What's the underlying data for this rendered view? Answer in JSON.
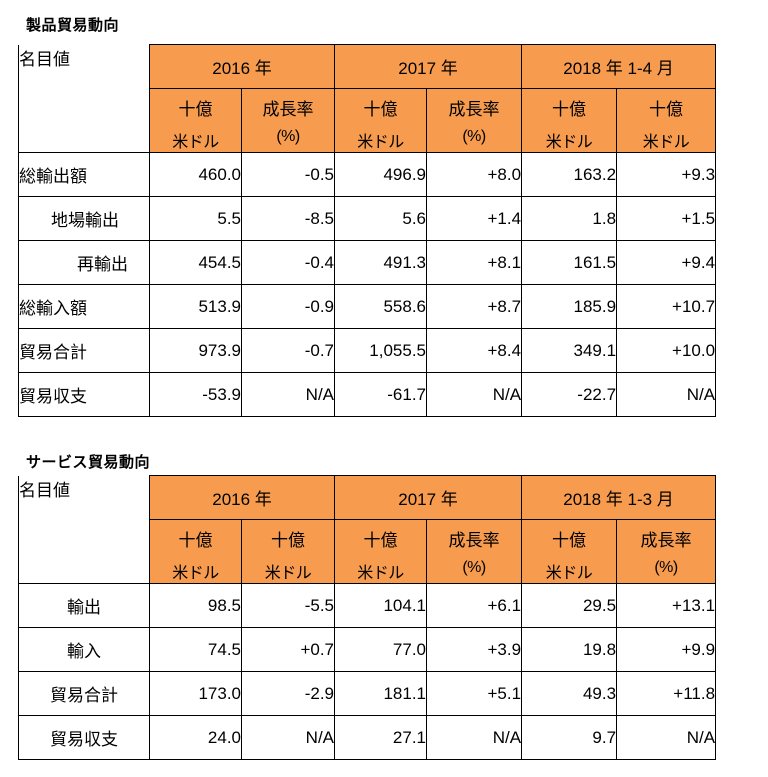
{
  "goods": {
    "title": "製品貿易動向",
    "corner": "名目値",
    "years": [
      "2016 年",
      "2017 年",
      "2018 年 1-4 月"
    ],
    "units": [
      {
        "l1": "十億",
        "l2": "米ドル"
      },
      {
        "l1": "成長率",
        "l2": "(%)"
      },
      {
        "l1": "十億",
        "l2": "米ドル"
      },
      {
        "l1": "成長率",
        "l2": "(%)"
      },
      {
        "l1": "十億",
        "l2": "米ドル"
      },
      {
        "l1": "十億",
        "l2": "米ドル"
      }
    ],
    "rows": [
      {
        "label": "総輸出額",
        "values": [
          "460.0",
          "-0.5",
          "496.9",
          "+8.0",
          "163.2",
          "+9.3"
        ]
      },
      {
        "label": "地場輸出",
        "values": [
          "5.5",
          "-8.5",
          "5.6",
          "+1.4",
          "1.8",
          "+1.5"
        ]
      },
      {
        "label": "再輸出",
        "values": [
          "454.5",
          "-0.4",
          "491.3",
          "+8.1",
          "161.5",
          "+9.4"
        ]
      },
      {
        "label": "総輸入額",
        "values": [
          "513.9",
          "-0.9",
          "558.6",
          "+8.7",
          "185.9",
          "+10.7"
        ]
      },
      {
        "label": "貿易合計",
        "values": [
          "973.9",
          "-0.7",
          "1,055.5",
          "+8.4",
          "349.1",
          "+10.0"
        ]
      },
      {
        "label": "貿易収支",
        "values": [
          "-53.9",
          "N/A",
          "-61.7",
          "N/A",
          "-22.7",
          "N/A"
        ]
      }
    ]
  },
  "services": {
    "title": "サービス貿易動向",
    "corner": "名目値",
    "years": [
      "2016 年",
      "2017 年",
      "2018 年 1-3 月"
    ],
    "units": [
      {
        "l1": "十億",
        "l2": "米ドル"
      },
      {
        "l1": "十億",
        "l2": "米ドル"
      },
      {
        "l1": "十億",
        "l2": "米ドル"
      },
      {
        "l1": "成長率",
        "l2": "(%)"
      },
      {
        "l1": "十億",
        "l2": "米ドル"
      },
      {
        "l1": "成長率",
        "l2": "(%)"
      }
    ],
    "rows": [
      {
        "label": "輸出",
        "values": [
          "98.5",
          "-5.5",
          "104.1",
          "+6.1",
          "29.5",
          "+13.1"
        ]
      },
      {
        "label": "輸入",
        "values": [
          "74.5",
          "+0.7",
          "77.0",
          "+3.9",
          "19.8",
          "+9.9"
        ]
      },
      {
        "label": "貿易合計",
        "values": [
          "173.0",
          "-2.9",
          "181.1",
          "+5.1",
          "49.3",
          "+11.8"
        ]
      },
      {
        "label": "貿易収支",
        "values": [
          "24.0",
          "N/A",
          "27.1",
          "N/A",
          "9.7",
          "N/A"
        ]
      }
    ]
  }
}
